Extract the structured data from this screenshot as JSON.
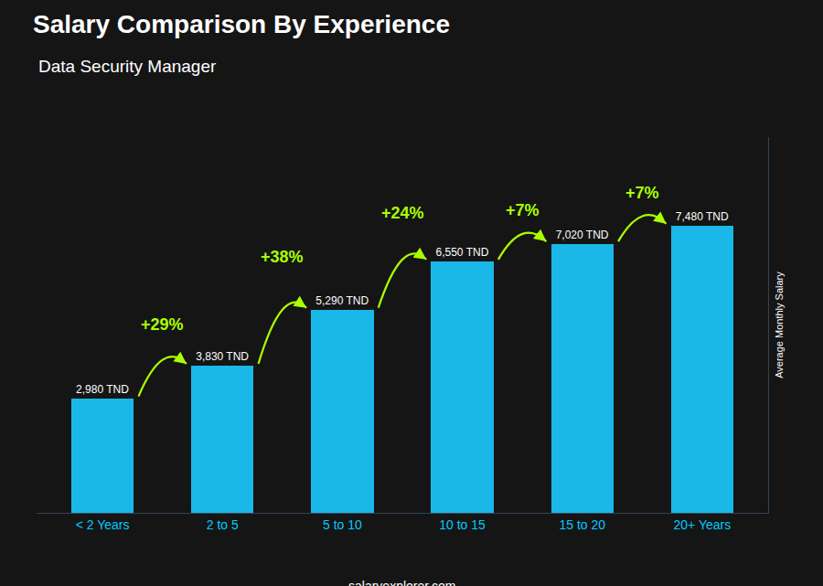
{
  "chart_data": {
    "type": "bar",
    "title": "Salary Comparison By Experience",
    "subtitle": "Data Security Manager",
    "ylabel": "Average Monthly Salary",
    "categories": [
      "< 2 Years",
      "2 to 5",
      "5 to 10",
      "10 to 15",
      "15 to 20",
      "20+ Years"
    ],
    "values": [
      2980,
      3830,
      5290,
      6550,
      7020,
      7480
    ],
    "value_labels": [
      "2,980 TND",
      "3,830 TND",
      "5,290 TND",
      "6,550 TND",
      "7,020 TND",
      "7,480 TND"
    ],
    "data_labels": true,
    "color": "#1AB8E8",
    "ylim": [
      0,
      9800
    ],
    "yticks": [],
    "tick_labels": "x",
    "grid": false,
    "annotations": [
      {
        "text": "+29%",
        "color": "#AAFF00"
      },
      {
        "text": "+38%",
        "color": "#AAFF00"
      },
      {
        "text": "+24%",
        "color": "#AAFF00"
      },
      {
        "text": "+7%",
        "color": "#AAFF00"
      },
      {
        "text": "+7%",
        "color": "#AAFF00"
      }
    ],
    "footer": "salaryexplorer.com"
  }
}
